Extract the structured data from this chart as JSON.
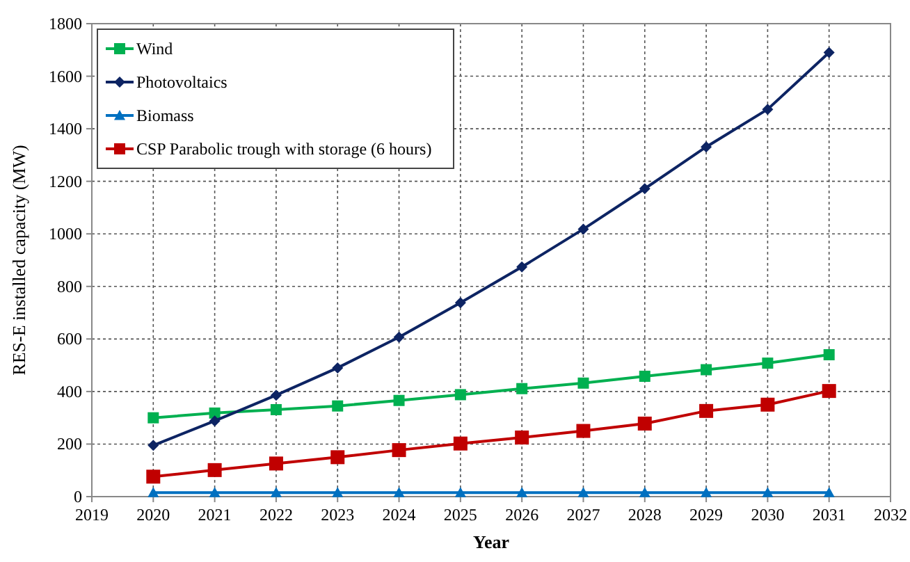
{
  "chart_data": {
    "type": "line",
    "xlabel": "Year",
    "ylabel": "RES-E installed capacity (MW)",
    "x": [
      2020,
      2021,
      2022,
      2023,
      2024,
      2025,
      2026,
      2027,
      2028,
      2029,
      2030,
      2031
    ],
    "xlim": [
      2019,
      2032
    ],
    "xticks": [
      2019,
      2020,
      2021,
      2022,
      2023,
      2024,
      2025,
      2026,
      2027,
      2028,
      2029,
      2030,
      2031,
      2032
    ],
    "ylim": [
      0,
      1800
    ],
    "yticks": [
      0,
      200,
      400,
      600,
      800,
      1000,
      1200,
      1400,
      1600,
      1800
    ],
    "grid": true,
    "legend": "top left",
    "series": [
      {
        "name": "Wind",
        "color": "#00b050",
        "marker": "square",
        "values": [
          300,
          318,
          331,
          345,
          366,
          388,
          411,
          432,
          458,
          483,
          508,
          540
        ]
      },
      {
        "name": "Photovoltaics",
        "color": "#0d2463",
        "marker": "diamond",
        "values": [
          195,
          288,
          386,
          490,
          607,
          738,
          874,
          1018,
          1172,
          1331,
          1474,
          1690
        ]
      },
      {
        "name": "Biomass",
        "color": "#0070c0",
        "marker": "triangle",
        "values": [
          15,
          15,
          15,
          15,
          15,
          15,
          15,
          15,
          15,
          15,
          15,
          15
        ]
      },
      {
        "name": "CSP Parabolic trough with storage (6 hours)",
        "color": "#c00000",
        "marker": "square",
        "values": [
          76,
          101,
          126,
          150,
          177,
          202,
          225,
          250,
          278,
          326,
          350,
          402
        ]
      }
    ]
  }
}
